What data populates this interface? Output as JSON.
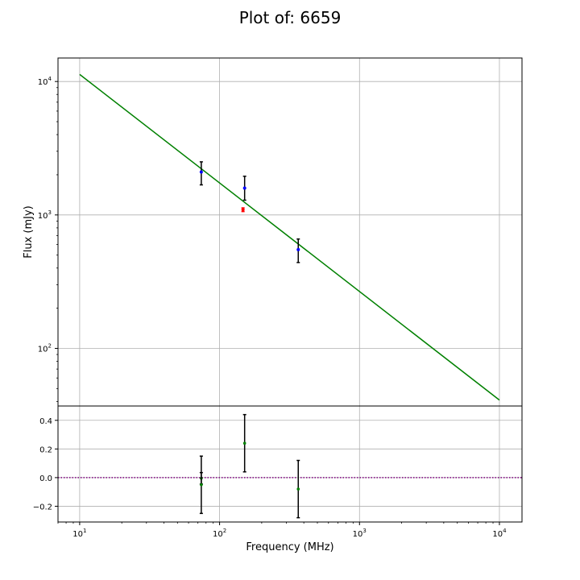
{
  "chart_data": {
    "type": "scatter",
    "title": "Plot of: 6659",
    "xlabel": "Frequency (MHz)",
    "xscale": "log",
    "xlim": [
      7.0,
      14500
    ],
    "colors": {
      "fit": "#008000",
      "points_blue": "#0000ff",
      "points_red": "#ff0000",
      "residuals": "#008000",
      "zero_line": "#800080",
      "errorbar": "#000000",
      "grid": "#b0b0b0"
    },
    "grid": true,
    "panels": [
      {
        "name": "flux",
        "ylabel": "Flux (mJy)",
        "yscale": "log",
        "ylim": [
          37,
          15000
        ],
        "x_ticks": [
          {
            "value": 10,
            "base": "10",
            "exp": "1"
          },
          {
            "value": 100,
            "base": "10",
            "exp": "2"
          },
          {
            "value": 1000,
            "base": "10",
            "exp": "3"
          },
          {
            "value": 10000,
            "base": "10",
            "exp": "4"
          }
        ],
        "y_ticks": [
          {
            "value": 100,
            "base": "10",
            "exp": "2"
          },
          {
            "value": 1000,
            "base": "10",
            "exp": "3"
          },
          {
            "value": 10000,
            "base": "10",
            "exp": "4"
          }
        ],
        "fit_line": {
          "x": [
            10,
            10000
          ],
          "y": [
            11300,
            41
          ]
        },
        "series": [
          {
            "points": [
              {
                "x": 74,
                "y": 2100,
                "ylo": 1680,
                "yhi": 2500
              },
              {
                "x": 151,
                "y": 1590,
                "ylo": 1290,
                "yhi": 1950
              },
              {
                "x": 365,
                "y": 550,
                "ylo": 440,
                "yhi": 660
              }
            ]
          },
          {
            "points": [
              {
                "x": 147,
                "y": 1095,
                "ylo": 1060,
                "yhi": 1130
              }
            ]
          }
        ]
      },
      {
        "name": "residuals",
        "ylabel": "",
        "yscale": "linear",
        "ylim": [
          -0.31,
          0.5
        ],
        "y_ticks": [
          {
            "value": 0.4,
            "label": "0.4"
          },
          {
            "value": 0.2,
            "label": "0.2"
          },
          {
            "value": 0.0,
            "label": "0.0"
          },
          {
            "value": -0.2,
            "label": "−0.2"
          }
        ],
        "x_ticks": [
          {
            "value": 10,
            "base": "10",
            "exp": "1"
          },
          {
            "value": 100,
            "base": "10",
            "exp": "2"
          },
          {
            "value": 1000,
            "base": "10",
            "exp": "3"
          },
          {
            "value": 10000,
            "base": "10",
            "exp": "4"
          }
        ],
        "zero_line": 0.0,
        "points": [
          {
            "x": 74,
            "y": -0.005,
            "ylo": -0.045,
            "yhi": 0.035
          },
          {
            "x": 74,
            "y": -0.05,
            "ylo": -0.25,
            "yhi": 0.15
          },
          {
            "x": 151,
            "y": 0.24,
            "ylo": 0.04,
            "yhi": 0.44
          },
          {
            "x": 365,
            "y": -0.08,
            "ylo": -0.28,
            "yhi": 0.12
          }
        ]
      }
    ]
  }
}
